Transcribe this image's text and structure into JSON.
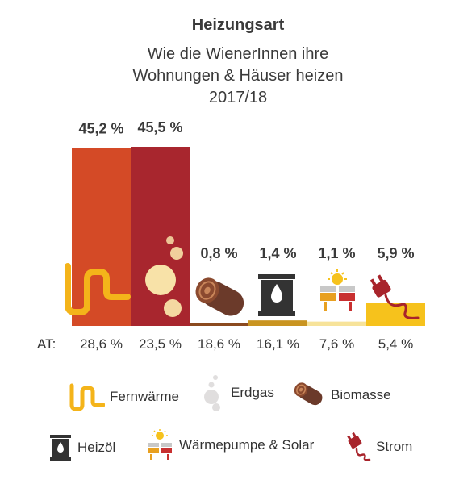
{
  "title": "Heizungsart",
  "subtitle_lines": [
    "Wie die WienerInnen ihre",
    "Wohnungen & Häuser heizen",
    "2017/18"
  ],
  "colors": {
    "fernwaerme": "#F4B41A",
    "erdgas": "#E0DEDE",
    "biomasse": "#6B3A2A",
    "heizoel": "#333333",
    "waermepumpe_solar": "#E8A020",
    "strom": "#A8242B"
  },
  "chart_data": {
    "type": "bar",
    "categories": [
      "Fernwärme",
      "Erdgas",
      "Biomasse",
      "Heizöl",
      "Wärmepumpe & Solar",
      "Strom"
    ],
    "values": [
      45.2,
      45.5,
      0.8,
      1.4,
      1.1,
      5.9
    ],
    "value_labels": [
      "45,2 %",
      "45,5 %",
      "0,8 %",
      "1,4 %",
      "1,1 %",
      "5,9 %"
    ],
    "bar_colors": [
      "#D44A26",
      "#A8262E",
      "#8B4A1F",
      "#C99420",
      "#F7E39A",
      "#F6C21C"
    ],
    "comparison_label": "AT:",
    "comparison_values": [
      28.6,
      23.5,
      18.6,
      16.1,
      7.6,
      5.4
    ],
    "comparison_labels": [
      "28,6 %",
      "23,5 %",
      "18,6 %",
      "16,1 %",
      "7,6 %",
      "5,4 %"
    ],
    "ylim": [
      0,
      45.5
    ],
    "legend": [
      "Fernwärme",
      "Erdgas",
      "Biomasse",
      "Heizöl",
      "Wärmepumpe & Solar",
      "Strom"
    ]
  }
}
